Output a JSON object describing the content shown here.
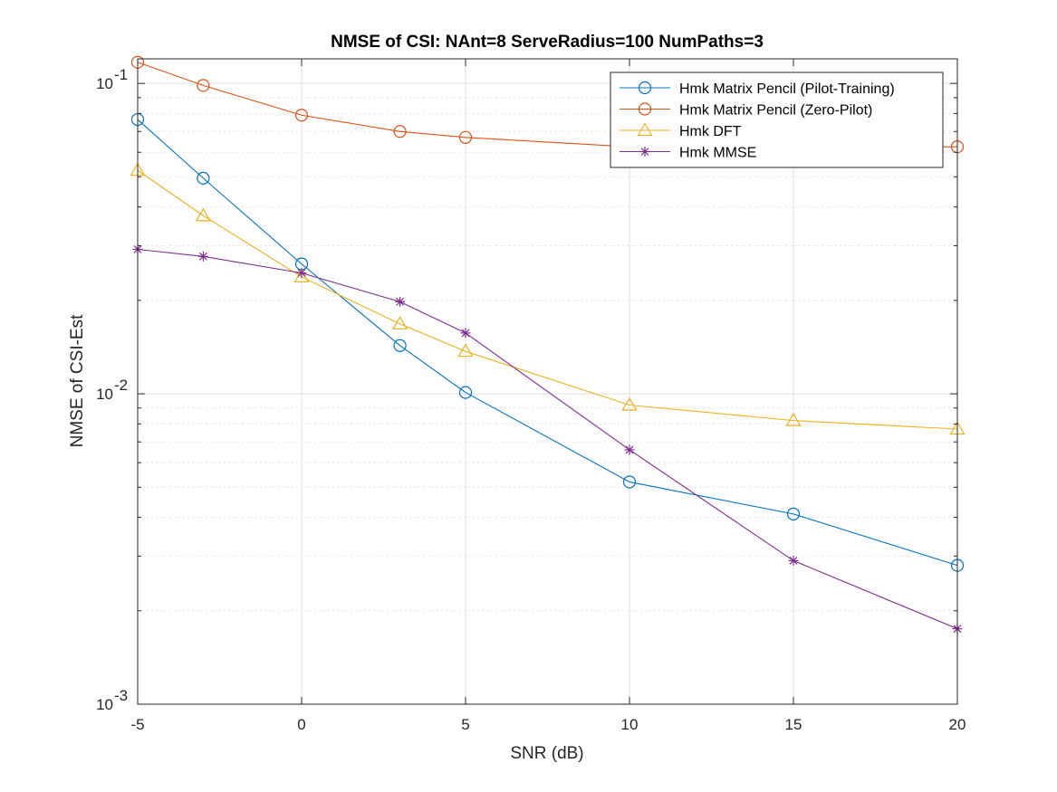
{
  "chart_data": {
    "type": "line",
    "title": "NMSE of CSI: NAnt=8 ServeRadius=100 NumPaths=3",
    "xlabel": "SNR (dB)",
    "ylabel": "NMSE of CSI-Est",
    "xlim": [
      -5,
      20
    ],
    "ylim": [
      0.001,
      0.12
    ],
    "yscale": "log",
    "grid": true,
    "legend_position": "top-right",
    "x": [
      -5,
      -3,
      0,
      3,
      5,
      10,
      15,
      20
    ],
    "x_ticks": [
      "-5",
      "0",
      "5",
      "10",
      "15",
      "20"
    ],
    "y_ticks": [
      {
        "value": 0.1,
        "base": "10",
        "exp": "-1"
      },
      {
        "value": 0.01,
        "base": "10",
        "exp": "-2"
      },
      {
        "value": 0.001,
        "base": "10",
        "exp": "-3"
      }
    ],
    "series": [
      {
        "name": "Hmk Matrix Pencil (Pilot-Training)",
        "color": "#0072BD",
        "marker": "circle",
        "values": [
          0.0765,
          0.0495,
          0.0262,
          0.0143,
          0.0101,
          0.0052,
          0.0041,
          0.0028
        ]
      },
      {
        "name": "Hmk Matrix Pencil (Zero-Pilot)",
        "color": "#D95319",
        "marker": "circle",
        "values": [
          0.117,
          0.0985,
          0.079,
          0.07,
          0.067,
          0.0625,
          0.0625,
          0.0625
        ]
      },
      {
        "name": "Hmk DFT",
        "color": "#EDB120",
        "marker": "triangle",
        "values": [
          0.0525,
          0.0375,
          0.0238,
          0.0168,
          0.0137,
          0.0092,
          0.0082,
          0.0077
        ]
      },
      {
        "name": "Hmk MMSE",
        "color": "#7E2F8E",
        "marker": "asterisk",
        "values": [
          0.0292,
          0.0277,
          0.0245,
          0.0198,
          0.0157,
          0.0066,
          0.0029,
          0.00175
        ]
      }
    ]
  }
}
